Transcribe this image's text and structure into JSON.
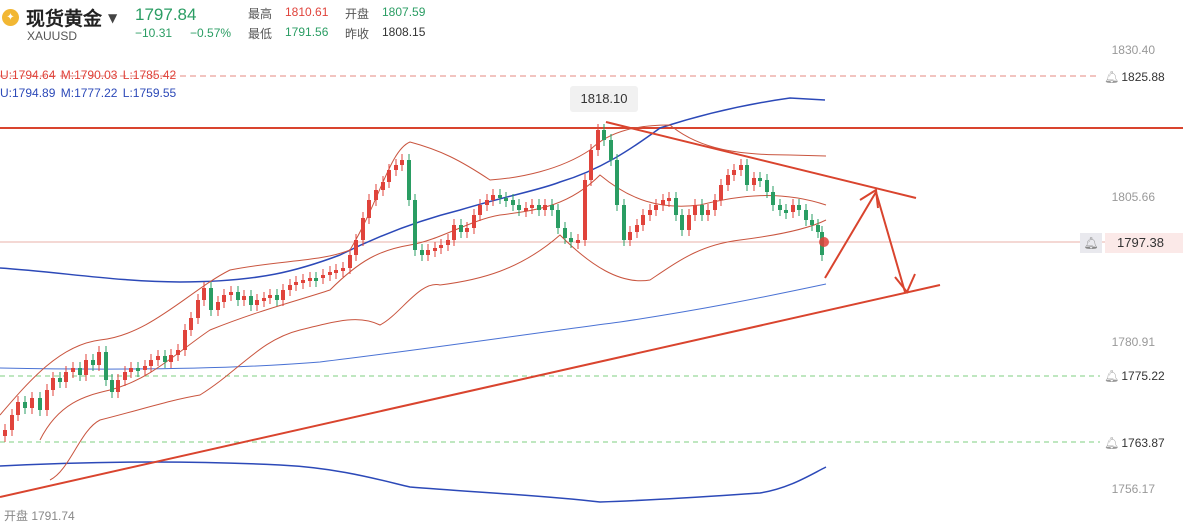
{
  "header": {
    "logo_glyph": "✦",
    "symbol_name": "现货黄金",
    "dropdown_icon": "▼",
    "symbol_code": "XAUUSD",
    "last_price": "1797.84",
    "change": "−10.31",
    "change_pct": "−0.57%",
    "high_label": "最高",
    "high_value": "1810.61",
    "open_label": "开盘",
    "open_value": "1807.59",
    "low_label": "最低",
    "low_value": "1791.56",
    "prev_close_label": "昨收",
    "prev_close_value": "1808.15"
  },
  "indicators": {
    "line1": {
      "u": "U:1794.64",
      "m": "M:1790.03",
      "l": "L:1785.42"
    },
    "line2": {
      "u": "U:1794.89",
      "m": "M:1777.22",
      "l": "L:1759.55"
    }
  },
  "price_axis": [
    "1830.40",
    "1805.66",
    "1780.91",
    "1756.17"
  ],
  "price_tags": {
    "alert1": "1825.88",
    "current": "1797.38",
    "alert2": "1775.22",
    "alert3": "1763.87"
  },
  "high_marker": "1818.10",
  "footer": {
    "open_text": "开盘 1791.74"
  },
  "colors": {
    "up": "#e0433b",
    "down": "#2a9d63",
    "boll_short": "#c9553f",
    "boll_long": "#2c49b8",
    "trend": "#d9442e",
    "ma_blue": "#4a72d4",
    "alert_dash": "#7fcf82",
    "red_dash": "#e48a80"
  },
  "chart_data": {
    "type": "candlestick",
    "symbol": "XAUUSD",
    "y_ticks": [
      1830.4,
      1805.66,
      1780.91,
      1756.17
    ],
    "ylim": [
      1753.0,
      1833.0
    ],
    "overlays": [
      {
        "name": "BOLL short",
        "u": 1794.64,
        "m": 1790.03,
        "l": 1785.42
      },
      {
        "name": "BOLL long",
        "u": 1794.89,
        "m": 1777.22,
        "l": 1759.55
      }
    ],
    "horizontal_levels": [
      1825.88,
      1797.38,
      1775.22,
      1763.87
    ],
    "period_high": 1818.1,
    "open": 1791.74
  }
}
